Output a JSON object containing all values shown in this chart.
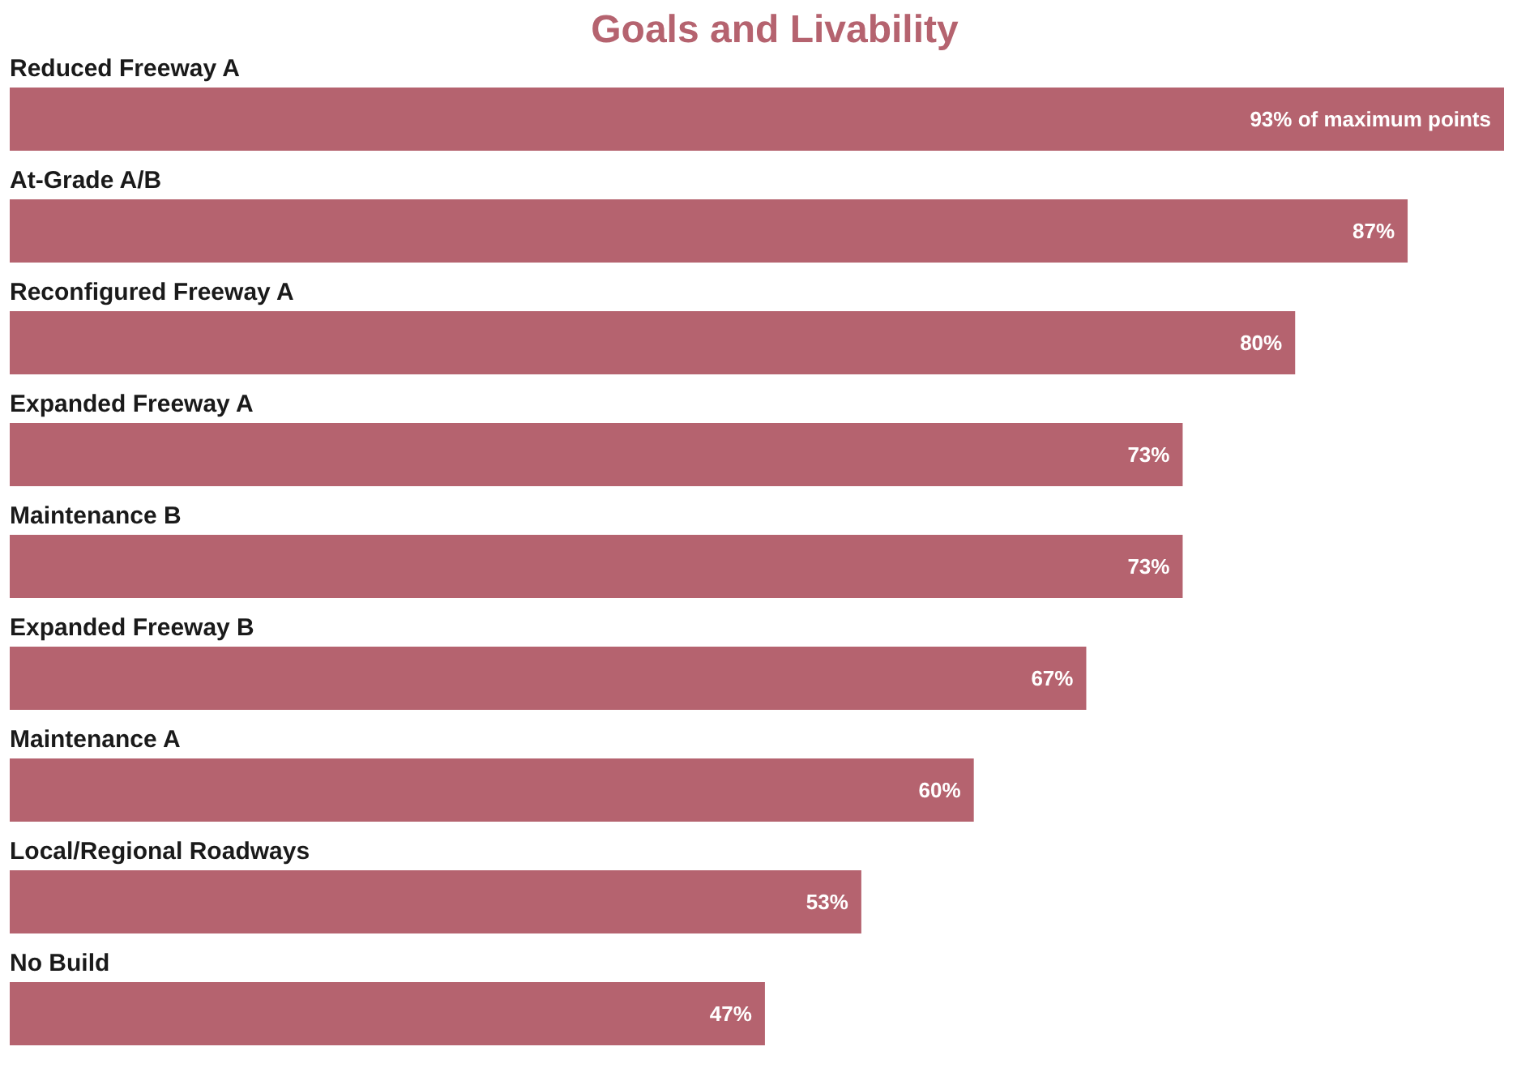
{
  "chart_data": {
    "type": "bar",
    "orientation": "horizontal",
    "title": "Goals and Livability",
    "categories": [
      "Reduced Freeway A",
      "At-Grade A/B",
      "Reconfigured Freeway A",
      "Expanded Freeway A",
      "Maintenance B",
      "Expanded Freeway B",
      "Maintenance A",
      "Local/Regional Roadways",
      "No Build"
    ],
    "values": [
      93,
      87,
      80,
      73,
      73,
      67,
      60,
      53,
      47
    ],
    "value_labels": [
      "93% of maximum points",
      "87%",
      "80%",
      "73%",
      "73%",
      "67%",
      "60%",
      "53%",
      "47%"
    ],
    "color": "#b5636f"
  }
}
